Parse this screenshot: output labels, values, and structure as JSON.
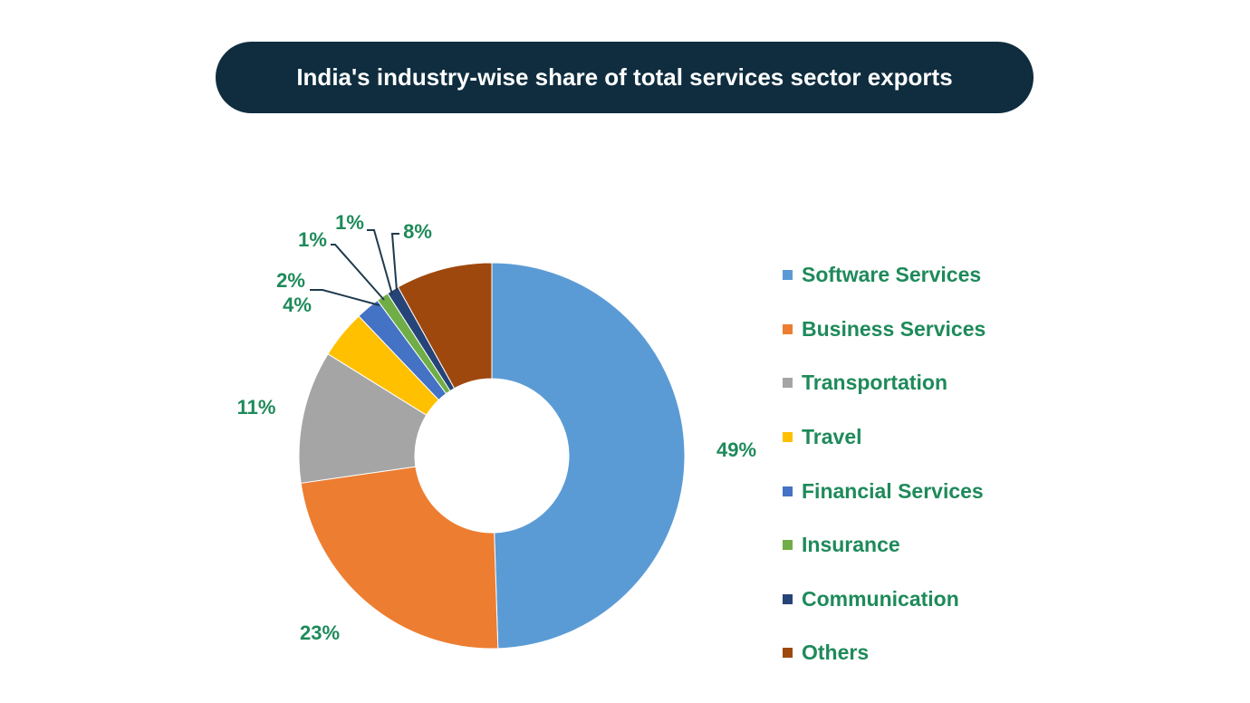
{
  "chart_data": {
    "type": "pie",
    "title": "India's industry-wise share of total services sector exports",
    "categories": [
      "Software Services",
      "Business Services",
      "Transportation",
      "Travel",
      "Financial Services",
      "Insurance",
      "Communication",
      "Others"
    ],
    "values": [
      49,
      23,
      11,
      4,
      2,
      1,
      1,
      8
    ],
    "data_labels": [
      "49%",
      "23%",
      "11%",
      "4%",
      "2%",
      "1%",
      "1%",
      "8%"
    ],
    "colors": [
      "#5b9bd5",
      "#ed7d31",
      "#a5a5a5",
      "#ffc000",
      "#4472c4",
      "#70ad47",
      "#264478",
      "#9e480e"
    ],
    "label_color": "#1e8a5a",
    "donut": true,
    "legend_position": "right"
  }
}
